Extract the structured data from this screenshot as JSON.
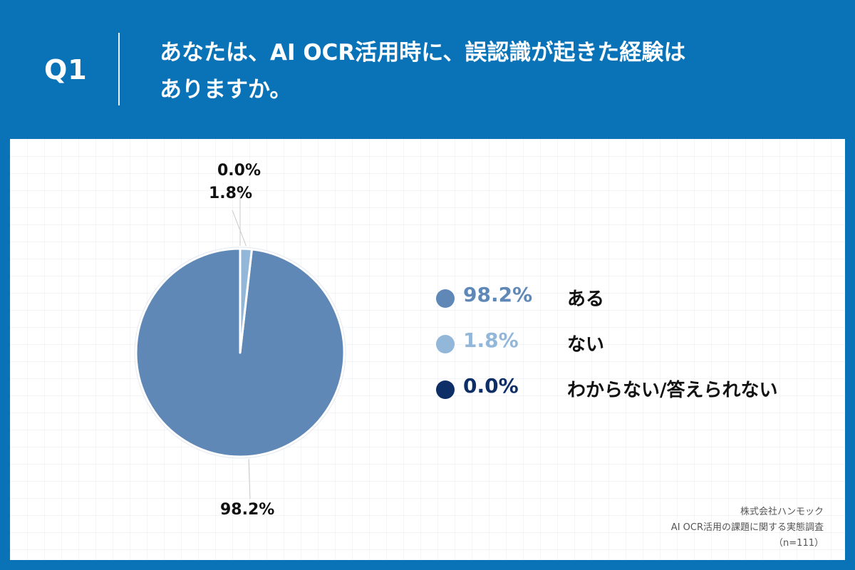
{
  "header": {
    "q_label": "Q1",
    "question_line1": "あなたは、AI OCR活用時に、誤認識が起きた経験は",
    "question_line2": "ありますか。"
  },
  "chart_data": {
    "type": "pie",
    "categories": [
      "ある",
      "ない",
      "わからない/答えられない"
    ],
    "values": [
      98.2,
      1.8,
      0.0
    ],
    "value_labels": [
      "98.2%",
      "1.8%",
      "0.0%"
    ],
    "colors": [
      "#5f88b7",
      "#93b7d9",
      "#0d2e66"
    ],
    "legend_placement": "right"
  },
  "legend": {
    "items": [
      {
        "value": "98.2%",
        "label": "ある",
        "color": "#5f88b7"
      },
      {
        "value": "1.8%",
        "label": "ない",
        "color": "#93b7d9"
      },
      {
        "value": "0.0%",
        "label": "わからない/答えられない",
        "color": "#0d2e66"
      }
    ]
  },
  "source": {
    "line1": "株式会社ハンモック",
    "line2": "AI OCR活用の課題に関する実態調査",
    "line3": "（n=111）"
  },
  "colors": {
    "background": "#0a73b8",
    "panel": "#ffffff"
  }
}
